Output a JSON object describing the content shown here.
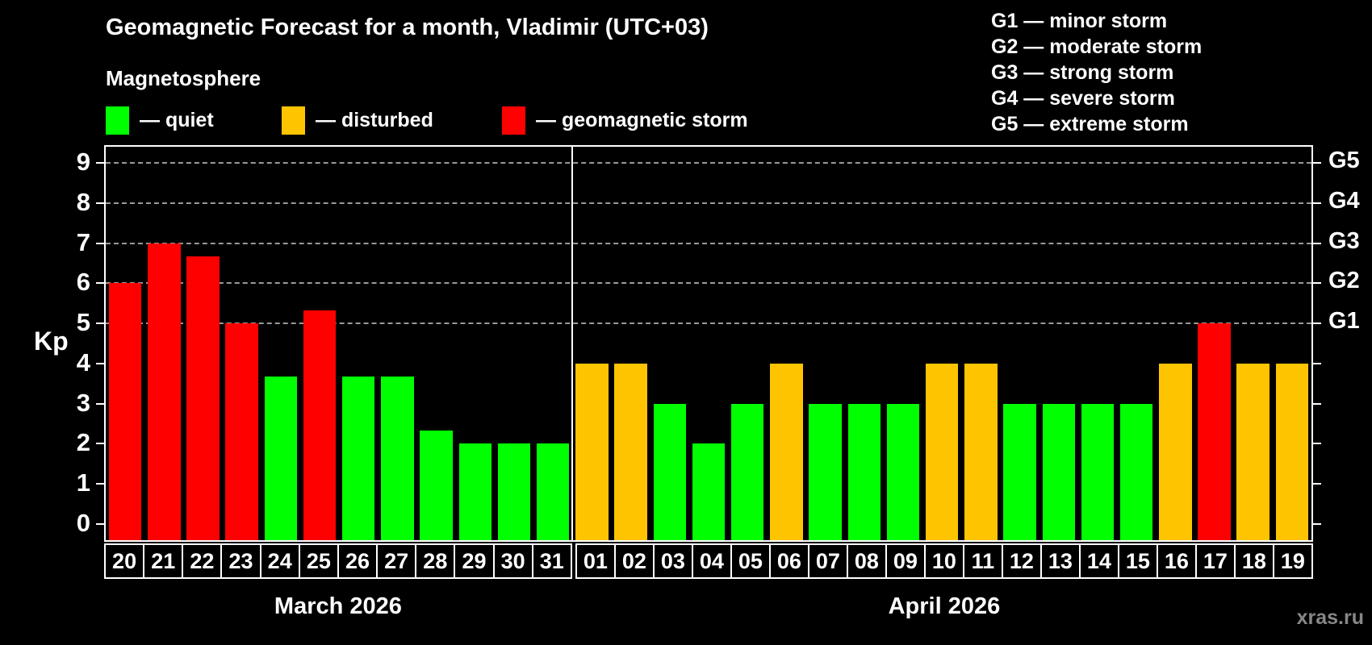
{
  "title": "Geomagnetic Forecast for a month, Vladimir (UTC+03)",
  "subtitle": "Magnetosphere",
  "status_legend": {
    "quiet_label": "— quiet",
    "disturbed_label": "— disturbed",
    "storm_label": "— geomagnetic storm"
  },
  "g_scale_legend": [
    "G1 — minor storm",
    "G2 — moderate storm",
    "G3 — strong storm",
    "G4 — severe storm",
    "G5 — extreme storm"
  ],
  "watermark": "xras.ru",
  "chart_data": {
    "type": "bar",
    "title": "Geomagnetic Forecast for a month, Vladimir (UTC+03)",
    "xlabel": "",
    "ylabel": "Kp",
    "ylim": [
      0,
      9
    ],
    "yticks": [
      0,
      1,
      2,
      3,
      4,
      5,
      6,
      7,
      8,
      9
    ],
    "gridlines_at": [
      5,
      6,
      7,
      8,
      9
    ],
    "grid": "horizontal dashed lines at Kp 5-9 only",
    "legend_position": "top-left swatches, top-right G-scale",
    "right_axis": [
      {
        "kp": 5,
        "label": "G1"
      },
      {
        "kp": 6,
        "label": "G2"
      },
      {
        "kp": 7,
        "label": "G3"
      },
      {
        "kp": 8,
        "label": "G4"
      },
      {
        "kp": 9,
        "label": "G5"
      }
    ],
    "status_colors": {
      "quiet": "#00ff00",
      "disturbed": "#ffc400",
      "storm": "#ff0000"
    },
    "months": [
      {
        "label": "March 2026",
        "days": [
          {
            "day": "20",
            "kp": 6.0,
            "status": "storm"
          },
          {
            "day": "21",
            "kp": 7.0,
            "status": "storm"
          },
          {
            "day": "22",
            "kp": 6.67,
            "status": "storm"
          },
          {
            "day": "23",
            "kp": 5.0,
            "status": "storm"
          },
          {
            "day": "24",
            "kp": 3.67,
            "status": "quiet"
          },
          {
            "day": "25",
            "kp": 5.33,
            "status": "storm"
          },
          {
            "day": "26",
            "kp": 3.67,
            "status": "quiet"
          },
          {
            "day": "27",
            "kp": 3.67,
            "status": "quiet"
          },
          {
            "day": "28",
            "kp": 2.33,
            "status": "quiet"
          },
          {
            "day": "29",
            "kp": 2.0,
            "status": "quiet"
          },
          {
            "day": "30",
            "kp": 2.0,
            "status": "quiet"
          },
          {
            "day": "31",
            "kp": 2.0,
            "status": "quiet"
          }
        ]
      },
      {
        "label": "April 2026",
        "days": [
          {
            "day": "01",
            "kp": 4.0,
            "status": "disturbed"
          },
          {
            "day": "02",
            "kp": 4.0,
            "status": "disturbed"
          },
          {
            "day": "03",
            "kp": 3.0,
            "status": "quiet"
          },
          {
            "day": "04",
            "kp": 2.0,
            "status": "quiet"
          },
          {
            "day": "05",
            "kp": 3.0,
            "status": "quiet"
          },
          {
            "day": "06",
            "kp": 4.0,
            "status": "disturbed"
          },
          {
            "day": "07",
            "kp": 3.0,
            "status": "quiet"
          },
          {
            "day": "08",
            "kp": 3.0,
            "status": "quiet"
          },
          {
            "day": "09",
            "kp": 3.0,
            "status": "quiet"
          },
          {
            "day": "10",
            "kp": 4.0,
            "status": "disturbed"
          },
          {
            "day": "11",
            "kp": 4.0,
            "status": "disturbed"
          },
          {
            "day": "12",
            "kp": 3.0,
            "status": "quiet"
          },
          {
            "day": "13",
            "kp": 3.0,
            "status": "quiet"
          },
          {
            "day": "14",
            "kp": 3.0,
            "status": "quiet"
          },
          {
            "day": "15",
            "kp": 3.0,
            "status": "quiet"
          },
          {
            "day": "16",
            "kp": 4.0,
            "status": "disturbed"
          },
          {
            "day": "17",
            "kp": 5.0,
            "status": "storm"
          },
          {
            "day": "18",
            "kp": 4.0,
            "status": "disturbed"
          },
          {
            "day": "19",
            "kp": 4.0,
            "status": "disturbed"
          }
        ]
      }
    ]
  }
}
